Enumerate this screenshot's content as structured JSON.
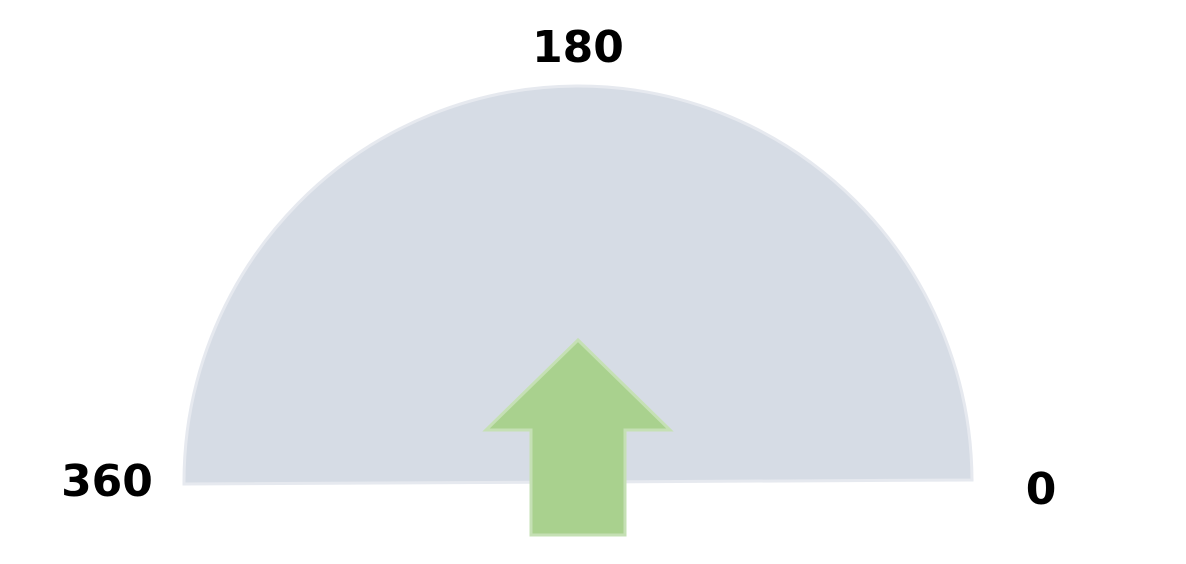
{
  "gauge": {
    "labels": {
      "top": "180",
      "left": "360",
      "right": "0"
    },
    "colors": {
      "dial_fill": "#d6dce5",
      "dial_stroke": "#e6e9ef",
      "arrow_fill": "#a9d18e",
      "arrow_stroke": "#c5e0b4",
      "label_text": "#000000"
    },
    "pointer": {
      "icon": "up-arrow-icon",
      "direction": "up"
    }
  }
}
